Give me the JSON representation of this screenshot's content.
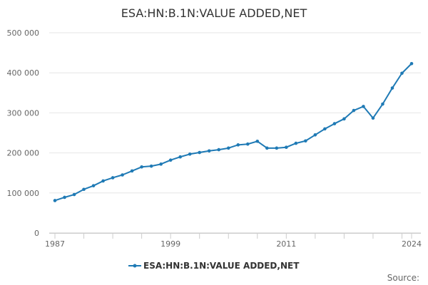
{
  "chart_data": {
    "type": "line",
    "title": "ESA:HN:B.1N:VALUE ADDED,NET",
    "xlabel": "",
    "ylabel": "",
    "x": [
      1987,
      1988,
      1989,
      1990,
      1991,
      1992,
      1993,
      1994,
      1995,
      1996,
      1997,
      1998,
      1999,
      2000,
      2001,
      2002,
      2003,
      2004,
      2005,
      2006,
      2007,
      2008,
      2009,
      2010,
      2011,
      2012,
      2013,
      2014,
      2015,
      2016,
      2017,
      2018,
      2019,
      2020,
      2021,
      2022,
      2023,
      2024
    ],
    "series": [
      {
        "name": "ESA:HN:B.1N:VALUE ADDED,NET",
        "color": "#1f7ab5",
        "values": [
          81000,
          89000,
          96000,
          109000,
          118000,
          130000,
          138000,
          145000,
          155000,
          165000,
          167000,
          172000,
          182000,
          190000,
          197000,
          201000,
          205000,
          208000,
          212000,
          220000,
          222000,
          229000,
          212000,
          212000,
          214000,
          224000,
          230000,
          245000,
          260000,
          273000,
          285000,
          306000,
          316000,
          287000,
          322000,
          362000,
          399000,
          423000
        ]
      }
    ],
    "xlim": [
      1987,
      2024
    ],
    "ylim": [
      0,
      500000
    ],
    "y_ticks": [
      0,
      100000,
      200000,
      300000,
      400000,
      500000
    ],
    "y_tick_labels": [
      "0",
      "100 000",
      "200 000",
      "300 000",
      "400 000",
      "500 000"
    ],
    "x_tick_labels": [
      "1987",
      "1999",
      "2011",
      "2024"
    ],
    "x_tick_years": [
      1987,
      1999,
      2011,
      2024
    ],
    "grid": true,
    "legend_position": "bottom-center",
    "source_label": "Source:"
  }
}
